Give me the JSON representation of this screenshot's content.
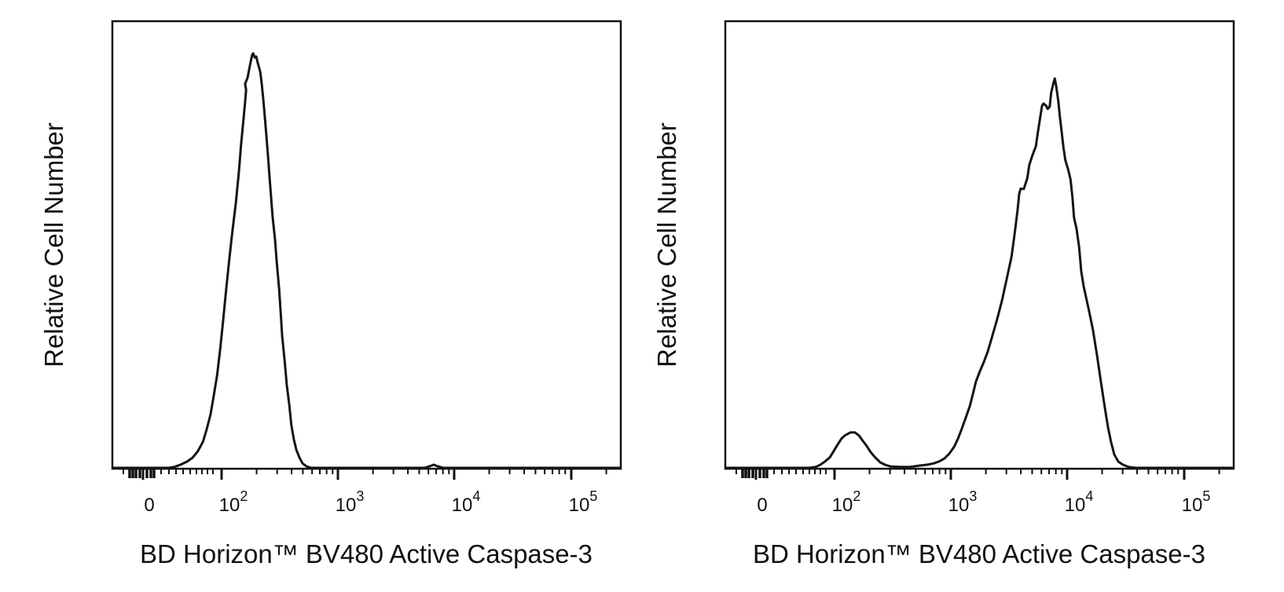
{
  "figure": {
    "description": "Two flow cytometry histogram overlays (negative control vs stimulated) showing BV480 Active Caspase-3 staining",
    "background_color": "#ffffff",
    "curve_color": "#151515",
    "text_color": "#111111"
  },
  "chart_data": [
    {
      "panel": "left",
      "type": "area",
      "subtype": "flow-cytometry-histogram",
      "title": "",
      "y_axis": {
        "label": "Relative Cell Number",
        "tick_labels": [],
        "note": "unlabeled relative scale"
      },
      "x_axis": {
        "label": "BD Horizon™ BV480 Active Caspase-3",
        "scale": "biexponential (logicle)",
        "tick_labels": [
          "0",
          "10^2",
          "10^3",
          "10^4",
          "10^5"
        ],
        "major_ticks": [
          {
            "label": "0",
            "exp": null,
            "f": 0.0603
          },
          {
            "label": "10",
            "exp": "2",
            "f": 0.2148
          },
          {
            "label": "10",
            "exp": "3",
            "f": 0.4436
          },
          {
            "label": "10",
            "exp": "4",
            "f": 0.6723
          },
          {
            "label": "10",
            "exp": "5",
            "f": 0.9026
          }
        ],
        "minor_ticks_f": [
          0.0216,
          0.0958,
          0.1113,
          0.1252,
          0.1391,
          0.153,
          0.1654,
          0.1762,
          0.187,
          0.1978,
          0.2837,
          0.324,
          0.3525,
          0.3747,
          0.3928,
          0.4081,
          0.4214,
          0.4332,
          0.5125,
          0.5528,
          0.5813,
          0.6035,
          0.6216,
          0.6369,
          0.6502,
          0.662,
          0.7412,
          0.7815,
          0.81,
          0.8322,
          0.8503,
          0.8656,
          0.8789,
          0.8907,
          0.9715
        ],
        "cluster_ticks_f": [
          0.034,
          0.0402,
          0.0464,
          0.0541,
          0.068,
          0.0757,
          0.0819
        ]
      },
      "peaks": [
        {
          "center_approx": "1.8×10²",
          "height_fraction": 0.93,
          "note": "single narrow negative peak"
        },
        {
          "center_approx": "7×10³",
          "height_fraction": 0.008,
          "note": "tiny baseline blip"
        }
      ],
      "points": [
        [
          0.003,
          0.002
        ],
        [
          0.111,
          0.002
        ],
        [
          0.122,
          0.004
        ],
        [
          0.134,
          0.009
        ],
        [
          0.147,
          0.016
        ],
        [
          0.158,
          0.025
        ],
        [
          0.168,
          0.039
        ],
        [
          0.178,
          0.06
        ],
        [
          0.185,
          0.086
        ],
        [
          0.193,
          0.121
        ],
        [
          0.199,
          0.161
        ],
        [
          0.206,
          0.209
        ],
        [
          0.212,
          0.267
        ],
        [
          0.218,
          0.332
        ],
        [
          0.224,
          0.402
        ],
        [
          0.23,
          0.468
        ],
        [
          0.236,
          0.53
        ],
        [
          0.243,
          0.595
        ],
        [
          0.249,
          0.665
        ],
        [
          0.253,
          0.723
        ],
        [
          0.258,
          0.781
        ],
        [
          0.261,
          0.819
        ],
        [
          0.263,
          0.846
        ],
        [
          0.261,
          0.86
        ],
        [
          0.266,
          0.874
        ],
        [
          0.27,
          0.898
        ],
        [
          0.275,
          0.925
        ],
        [
          0.277,
          0.928
        ],
        [
          0.28,
          0.919
        ],
        [
          0.283,
          0.921
        ],
        [
          0.286,
          0.907
        ],
        [
          0.291,
          0.886
        ],
        [
          0.294,
          0.858
        ],
        [
          0.297,
          0.823
        ],
        [
          0.3,
          0.784
        ],
        [
          0.303,
          0.744
        ],
        [
          0.306,
          0.7
        ],
        [
          0.309,
          0.654
        ],
        [
          0.312,
          0.609
        ],
        [
          0.315,
          0.565
        ],
        [
          0.32,
          0.512
        ],
        [
          0.323,
          0.465
        ],
        [
          0.328,
          0.402
        ],
        [
          0.331,
          0.349
        ],
        [
          0.334,
          0.296
        ],
        [
          0.339,
          0.24
        ],
        [
          0.343,
          0.188
        ],
        [
          0.348,
          0.142
        ],
        [
          0.352,
          0.098
        ],
        [
          0.357,
          0.065
        ],
        [
          0.362,
          0.042
        ],
        [
          0.368,
          0.025
        ],
        [
          0.374,
          0.012
        ],
        [
          0.382,
          0.005
        ],
        [
          0.391,
          0.002
        ],
        [
          0.614,
          0.002
        ],
        [
          0.623,
          0.005
        ],
        [
          0.632,
          0.009
        ],
        [
          0.641,
          0.005
        ],
        [
          0.651,
          0.002
        ],
        [
          0.997,
          0.002
        ]
      ]
    },
    {
      "panel": "right",
      "type": "area",
      "subtype": "flow-cytometry-histogram",
      "title": "",
      "y_axis": {
        "label": "Relative Cell Number",
        "tick_labels": [],
        "note": "unlabeled relative scale"
      },
      "x_axis": {
        "label": "BD Horizon™ BV480 Active Caspase-3",
        "scale": "biexponential (logicle)",
        "tick_labels": [
          "0",
          "10^2",
          "10^3",
          "10^4",
          "10^5"
        ],
        "major_ticks": [
          {
            "label": "0",
            "exp": null,
            "f": 0.0603
          },
          {
            "label": "10",
            "exp": "2",
            "f": 0.2148
          },
          {
            "label": "10",
            "exp": "3",
            "f": 0.4436
          },
          {
            "label": "10",
            "exp": "4",
            "f": 0.6723
          },
          {
            "label": "10",
            "exp": "5",
            "f": 0.9026
          }
        ],
        "minor_ticks_f": [
          0.0216,
          0.0958,
          0.1113,
          0.1252,
          0.1391,
          0.153,
          0.1654,
          0.1762,
          0.187,
          0.1978,
          0.2837,
          0.324,
          0.3525,
          0.3747,
          0.3928,
          0.4081,
          0.4214,
          0.4332,
          0.5125,
          0.5528,
          0.5813,
          0.6035,
          0.6216,
          0.6369,
          0.6502,
          0.662,
          0.7412,
          0.7815,
          0.81,
          0.8322,
          0.8503,
          0.8656,
          0.8789,
          0.8907,
          0.9715
        ],
        "cluster_ticks_f": [
          0.034,
          0.0402,
          0.0464,
          0.0541,
          0.068,
          0.0757,
          0.0819
        ]
      },
      "peaks": [
        {
          "center_approx": "1.3×10²",
          "height_fraction": 0.08,
          "note": "small residual negative peak"
        },
        {
          "center_approx": "7×10³",
          "height_fraction": 0.87,
          "note": "major active caspase-3 positive peak, jagged top with shoulders"
        }
      ],
      "points": [
        [
          0.003,
          0.002
        ],
        [
          0.165,
          0.002
        ],
        [
          0.178,
          0.004
        ],
        [
          0.187,
          0.009
        ],
        [
          0.196,
          0.016
        ],
        [
          0.206,
          0.026
        ],
        [
          0.213,
          0.039
        ],
        [
          0.221,
          0.054
        ],
        [
          0.229,
          0.068
        ],
        [
          0.236,
          0.075
        ],
        [
          0.246,
          0.081
        ],
        [
          0.255,
          0.081
        ],
        [
          0.263,
          0.074
        ],
        [
          0.27,
          0.063
        ],
        [
          0.278,
          0.051
        ],
        [
          0.286,
          0.037
        ],
        [
          0.295,
          0.025
        ],
        [
          0.305,
          0.014
        ],
        [
          0.314,
          0.009
        ],
        [
          0.325,
          0.005
        ],
        [
          0.343,
          0.004
        ],
        [
          0.363,
          0.004
        ],
        [
          0.382,
          0.007
        ],
        [
          0.397,
          0.009
        ],
        [
          0.41,
          0.012
        ],
        [
          0.42,
          0.016
        ],
        [
          0.431,
          0.023
        ],
        [
          0.44,
          0.033
        ],
        [
          0.45,
          0.049
        ],
        [
          0.458,
          0.068
        ],
        [
          0.465,
          0.089
        ],
        [
          0.473,
          0.114
        ],
        [
          0.481,
          0.14
        ],
        [
          0.487,
          0.167
        ],
        [
          0.493,
          0.195
        ],
        [
          0.501,
          0.218
        ],
        [
          0.508,
          0.237
        ],
        [
          0.516,
          0.261
        ],
        [
          0.525,
          0.296
        ],
        [
          0.535,
          0.335
        ],
        [
          0.544,
          0.375
        ],
        [
          0.552,
          0.416
        ],
        [
          0.563,
          0.474
        ],
        [
          0.57,
          0.533
        ],
        [
          0.575,
          0.579
        ],
        [
          0.578,
          0.614
        ],
        [
          0.581,
          0.626
        ],
        [
          0.587,
          0.625
        ],
        [
          0.594,
          0.649
        ],
        [
          0.598,
          0.679
        ],
        [
          0.604,
          0.7
        ],
        [
          0.611,
          0.721
        ],
        [
          0.615,
          0.753
        ],
        [
          0.62,
          0.789
        ],
        [
          0.623,
          0.811
        ],
        [
          0.626,
          0.816
        ],
        [
          0.631,
          0.811
        ],
        [
          0.634,
          0.804
        ],
        [
          0.638,
          0.809
        ],
        [
          0.641,
          0.84
        ],
        [
          0.645,
          0.86
        ],
        [
          0.648,
          0.872
        ],
        [
          0.651,
          0.854
        ],
        [
          0.655,
          0.821
        ],
        [
          0.658,
          0.788
        ],
        [
          0.662,
          0.749
        ],
        [
          0.665,
          0.718
        ],
        [
          0.669,
          0.689
        ],
        [
          0.674,
          0.67
        ],
        [
          0.679,
          0.647
        ],
        [
          0.683,
          0.604
        ],
        [
          0.686,
          0.561
        ],
        [
          0.691,
          0.535
        ],
        [
          0.696,
          0.495
        ],
        [
          0.7,
          0.442
        ],
        [
          0.705,
          0.407
        ],
        [
          0.714,
          0.36
        ],
        [
          0.723,
          0.311
        ],
        [
          0.731,
          0.254
        ],
        [
          0.739,
          0.193
        ],
        [
          0.747,
          0.133
        ],
        [
          0.753,
          0.091
        ],
        [
          0.759,
          0.058
        ],
        [
          0.765,
          0.032
        ],
        [
          0.773,
          0.016
        ],
        [
          0.782,
          0.009
        ],
        [
          0.793,
          0.004
        ],
        [
          0.807,
          0.002
        ],
        [
          0.997,
          0.002
        ]
      ]
    }
  ]
}
